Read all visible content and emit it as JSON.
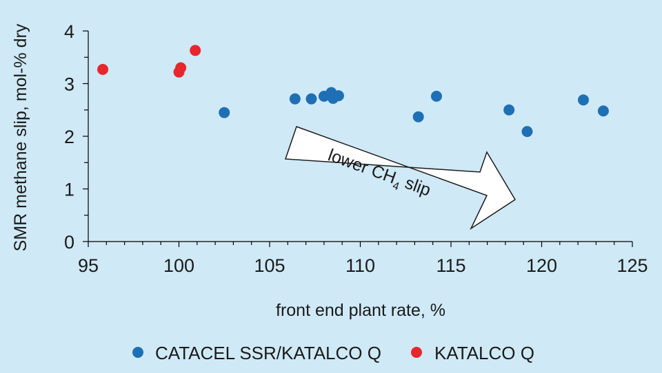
{
  "chart_data": {
    "type": "scatter",
    "xlabel": "front end plant rate, %",
    "ylabel": "SMR methane slip, mol-% dry",
    "xlim": [
      95,
      125
    ],
    "ylim": [
      0,
      4
    ],
    "x_ticks": [
      95,
      100,
      105,
      110,
      115,
      120,
      125
    ],
    "y_ticks": [
      0,
      1,
      2,
      3,
      4
    ],
    "grid": false,
    "legend_position": "bottom",
    "annotation": {
      "text": "lower CH",
      "subscript": "4",
      "suffix": " slip",
      "shape": "arrow"
    },
    "series": [
      {
        "name": "CATACEL SSR/KATALCO Q",
        "color": "#1f6fb5",
        "points": [
          {
            "x": 102.5,
            "y": 2.45
          },
          {
            "x": 106.4,
            "y": 2.71
          },
          {
            "x": 107.3,
            "y": 2.71
          },
          {
            "x": 108.0,
            "y": 2.76
          },
          {
            "x": 108.4,
            "y": 2.83
          },
          {
            "x": 108.5,
            "y": 2.72
          },
          {
            "x": 108.8,
            "y": 2.77
          },
          {
            "x": 113.2,
            "y": 2.37
          },
          {
            "x": 114.2,
            "y": 2.76
          },
          {
            "x": 118.2,
            "y": 2.5
          },
          {
            "x": 119.2,
            "y": 2.09
          },
          {
            "x": 122.3,
            "y": 2.69
          },
          {
            "x": 123.4,
            "y": 2.48
          }
        ]
      },
      {
        "name": "KATALCO Q",
        "color": "#e8262d",
        "points": [
          {
            "x": 95.8,
            "y": 3.27
          },
          {
            "x": 100.0,
            "y": 3.22
          },
          {
            "x": 100.1,
            "y": 3.3
          },
          {
            "x": 100.9,
            "y": 3.63
          }
        ]
      }
    ]
  }
}
